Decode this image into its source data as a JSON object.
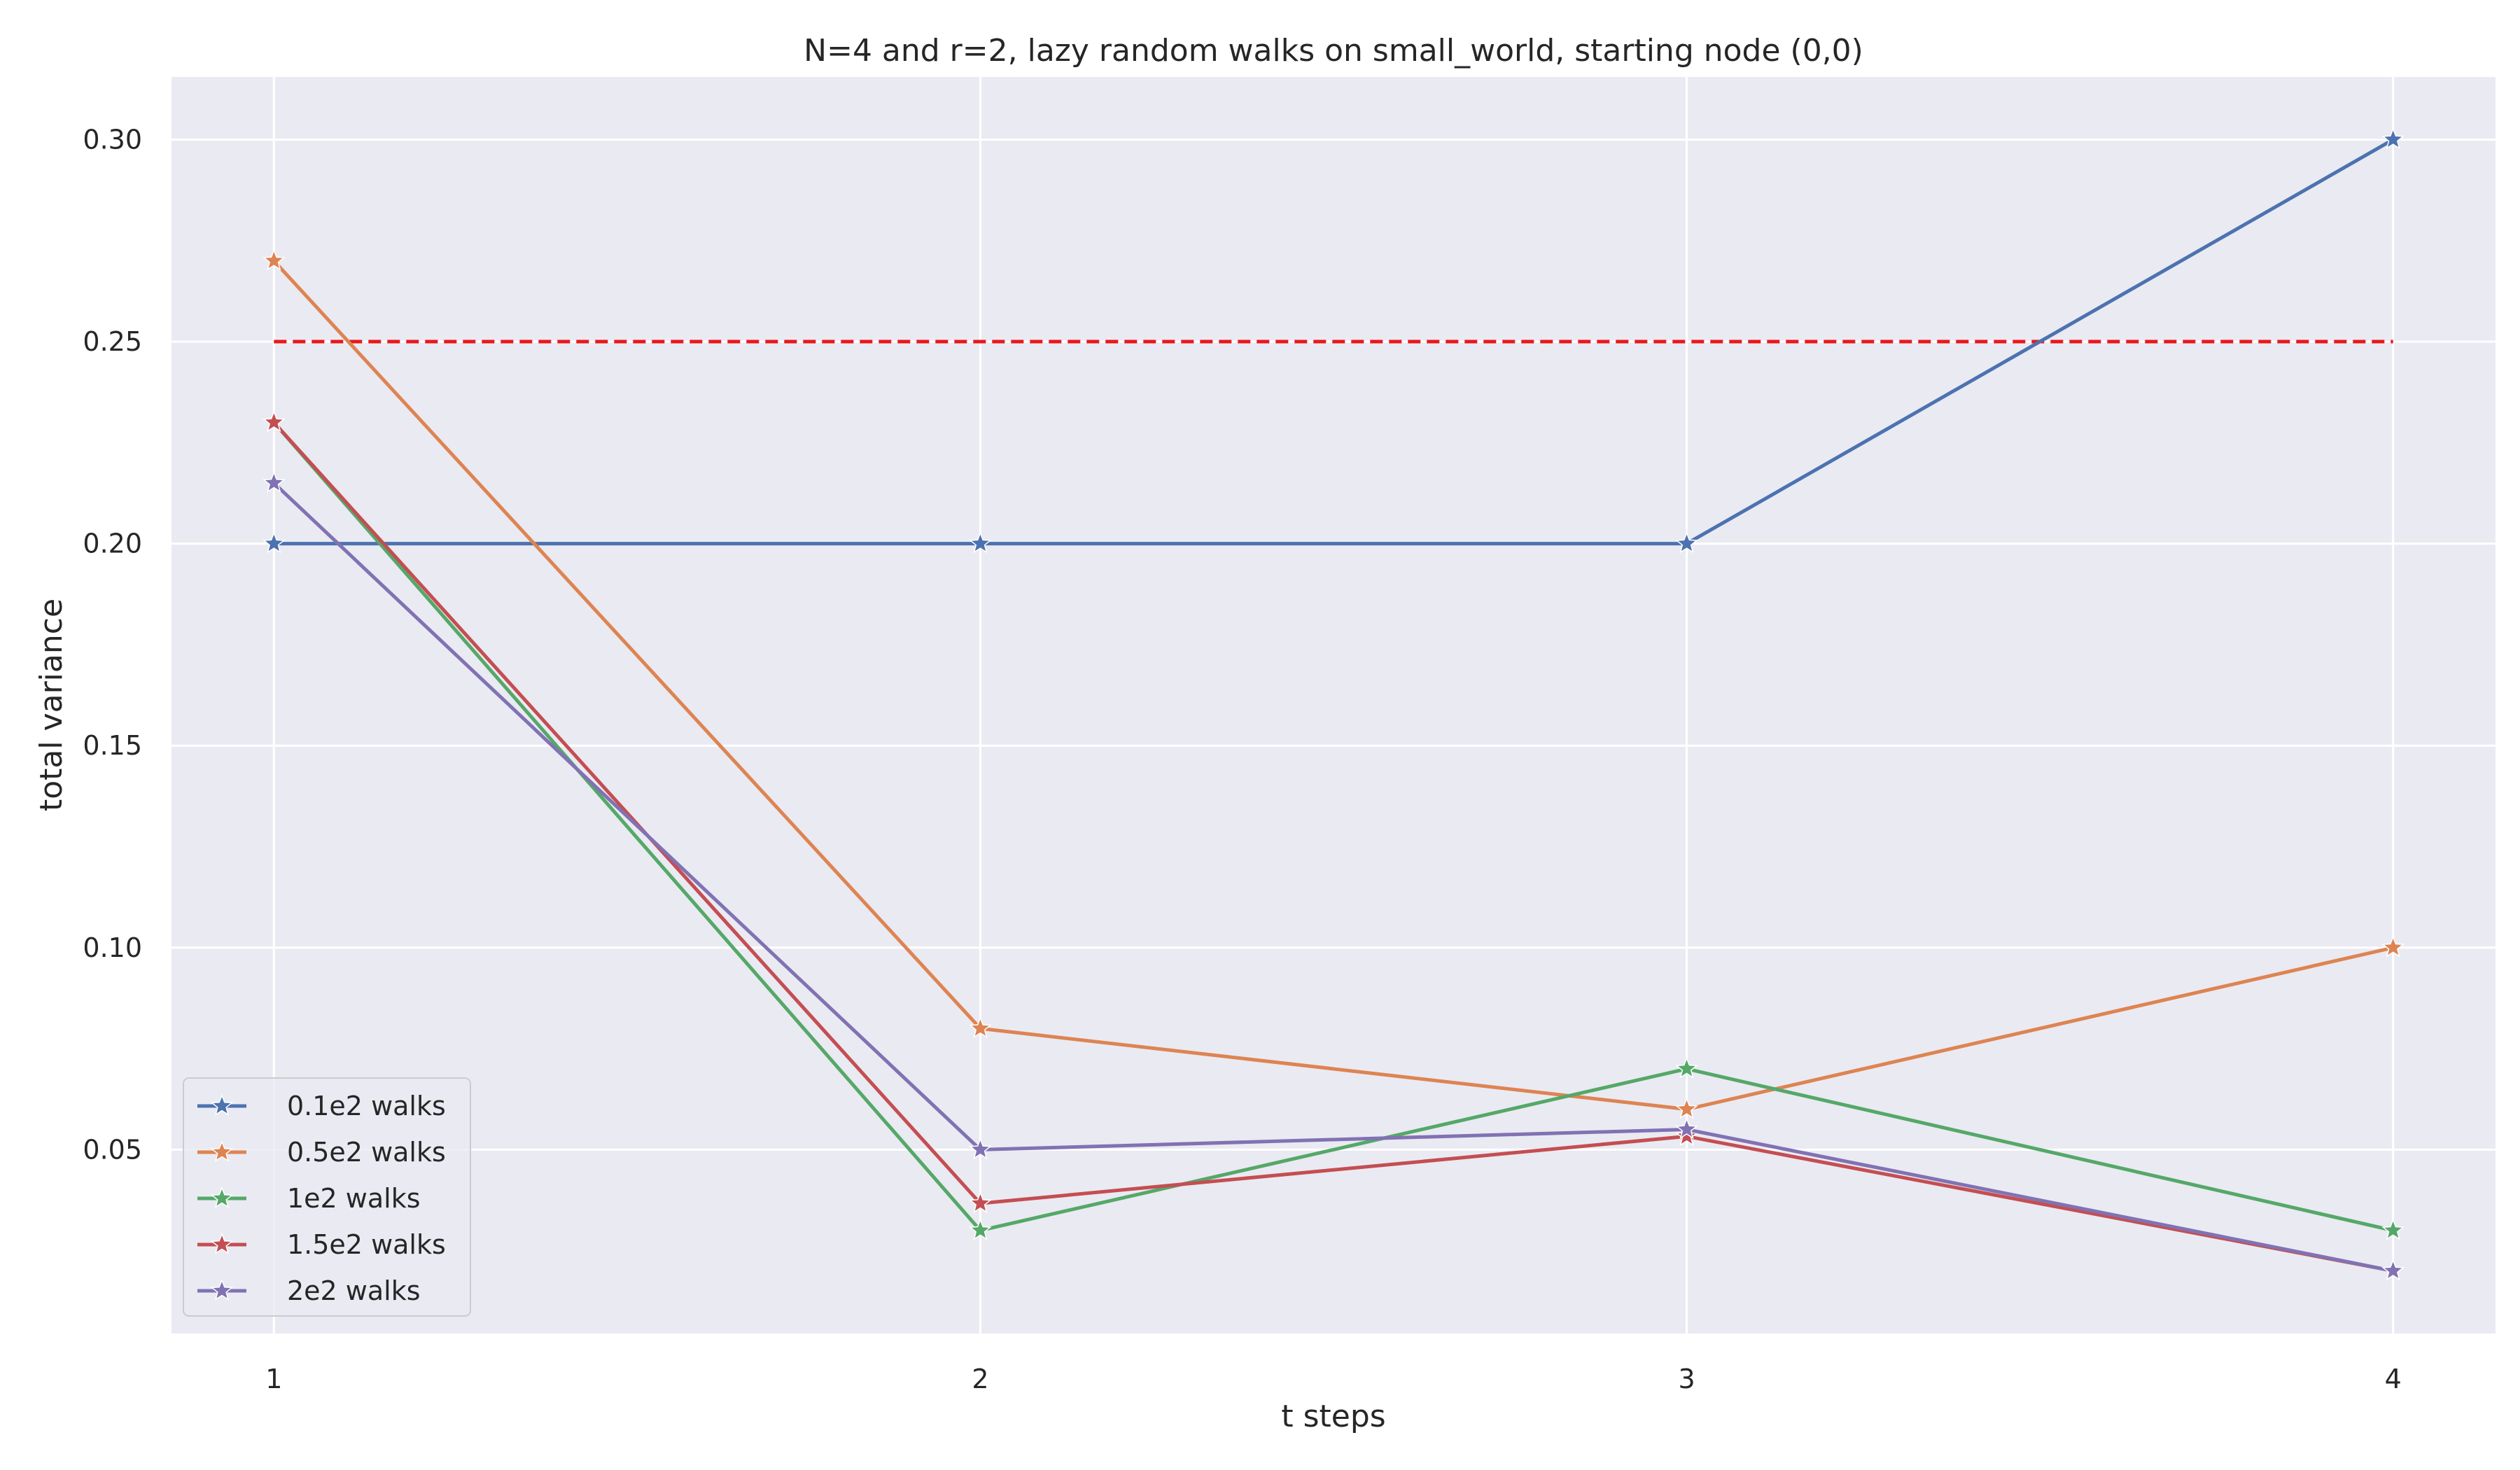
{
  "chart_data": {
    "type": "line",
    "title": "N=4 and r=2, lazy random walks on small_world, starting node (0,0)",
    "xlabel": "t steps",
    "ylabel": "total variance",
    "x": [
      1,
      2,
      3,
      4
    ],
    "xlim": [
      0.855,
      4.145
    ],
    "ylim": [
      0.0045,
      0.3155
    ],
    "xticks": [
      1,
      2,
      3,
      4
    ],
    "yticks": [
      0.05,
      0.1,
      0.15,
      0.2,
      0.25,
      0.3
    ],
    "ytick_labels": [
      "0.05",
      "0.10",
      "0.15",
      "0.20",
      "0.25",
      "0.30"
    ],
    "grid": true,
    "legend_position": "lower-left",
    "series": [
      {
        "name": "0.1e2 walks",
        "color": "#4c72b0",
        "marker": "star",
        "values": [
          0.2,
          0.2,
          0.2,
          0.3
        ]
      },
      {
        "name": "0.5e2 walks",
        "color": "#dd8452",
        "marker": "star",
        "values": [
          0.27,
          0.08,
          0.06,
          0.1
        ]
      },
      {
        "name": "1e2 walks",
        "color": "#55a868",
        "marker": "star",
        "values": [
          0.23,
          0.03,
          0.07,
          0.03
        ]
      },
      {
        "name": "1.5e2 walks",
        "color": "#c44e52",
        "marker": "star",
        "values": [
          0.23,
          0.0367,
          0.0533,
          0.02
        ]
      },
      {
        "name": "2e2 walks",
        "color": "#8172b3",
        "marker": "star",
        "values": [
          0.215,
          0.05,
          0.055,
          0.02
        ]
      }
    ],
    "reference_line": {
      "value": 0.25,
      "color": "#e8181b",
      "style": "dashed",
      "from_x": 1,
      "to_x": 4
    }
  }
}
